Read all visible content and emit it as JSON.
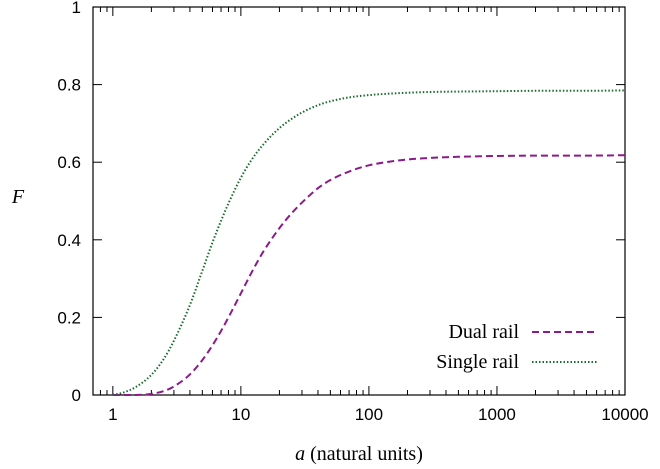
{
  "chart_data": {
    "type": "line",
    "title": "",
    "xlabel_var": "a",
    "xlabel_rest": " (natural units)",
    "ylabel": "F",
    "xscale": "log",
    "xlim": [
      0.7,
      10000
    ],
    "ylim": [
      0,
      1
    ],
    "grid": false,
    "legend_position": "bottom-right",
    "xticks": [
      {
        "value": 1,
        "label": "1"
      },
      {
        "value": 10,
        "label": "10"
      },
      {
        "value": 100,
        "label": "100"
      },
      {
        "value": 1000,
        "label": "1000"
      },
      {
        "value": 10000,
        "label": "10000"
      }
    ],
    "yticks": [
      {
        "value": 0,
        "label": "0"
      },
      {
        "value": 0.2,
        "label": "0.2"
      },
      {
        "value": 0.4,
        "label": "0.4"
      },
      {
        "value": 0.6,
        "label": "0.6"
      },
      {
        "value": 0.8,
        "label": "0.8"
      },
      {
        "value": 1,
        "label": "1"
      }
    ],
    "series": [
      {
        "name": "Dual rail",
        "color": "#8b1a8b",
        "dash": "dashed",
        "x": [
          1,
          1.5,
          2,
          2.5,
          3,
          4,
          5,
          6,
          7,
          8,
          10,
          12,
          15,
          20,
          25,
          30,
          40,
          50,
          70,
          100,
          150,
          200,
          300,
          500,
          1000,
          2000,
          5000,
          10000
        ],
        "y": [
          0.0,
          0.0,
          0.003,
          0.01,
          0.022,
          0.053,
          0.09,
          0.128,
          0.165,
          0.2,
          0.262,
          0.313,
          0.37,
          0.43,
          0.469,
          0.496,
          0.533,
          0.554,
          0.576,
          0.592,
          0.602,
          0.607,
          0.611,
          0.614,
          0.616,
          0.617,
          0.617,
          0.618
        ]
      },
      {
        "name": "Single rail",
        "color": "#1a6b2e",
        "dash": "dotted",
        "x": [
          1,
          1.2,
          1.5,
          2,
          2.5,
          3,
          4,
          5,
          6,
          7,
          8,
          10,
          12,
          15,
          20,
          25,
          30,
          40,
          50,
          70,
          100,
          150,
          200,
          300,
          500,
          1000,
          2000,
          5000,
          10000
        ],
        "y": [
          0.0,
          0.006,
          0.02,
          0.052,
          0.093,
          0.14,
          0.232,
          0.32,
          0.393,
          0.449,
          0.494,
          0.56,
          0.604,
          0.646,
          0.688,
          0.712,
          0.728,
          0.747,
          0.757,
          0.767,
          0.773,
          0.777,
          0.779,
          0.781,
          0.782,
          0.783,
          0.784,
          0.784,
          0.785
        ]
      }
    ]
  }
}
